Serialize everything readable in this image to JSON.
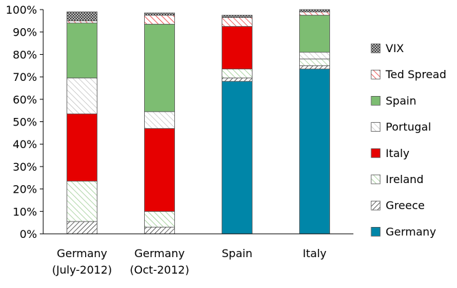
{
  "chart_data": {
    "type": "bar",
    "stacked": true,
    "percent": true,
    "ylim": [
      0,
      100
    ],
    "yticks": [
      "0%",
      "10%",
      "20%",
      "30%",
      "40%",
      "50%",
      "60%",
      "70%",
      "80%",
      "90%",
      "100%"
    ],
    "categories": [
      [
        "Germany",
        "(July-2012)"
      ],
      [
        "Germany",
        "(Oct-2012)"
      ],
      [
        "Spain"
      ],
      [
        "Italy"
      ]
    ],
    "series": [
      {
        "name": "Germany",
        "color": "#0086a8",
        "pattern": "solid",
        "values": [
          0,
          0,
          68,
          73.5
        ]
      },
      {
        "name": "Greece",
        "color": "#ffffff",
        "pattern": "hatch-dense-black",
        "values": [
          5.5,
          3,
          1.5,
          1.5
        ]
      },
      {
        "name": "Ireland",
        "color": "#ffffff",
        "pattern": "hatch-green",
        "values": [
          18,
          7,
          4,
          3
        ]
      },
      {
        "name": "Italy",
        "color": "#e60000",
        "pattern": "solid",
        "values": [
          30,
          37,
          19,
          0
        ]
      },
      {
        "name": "Portugal",
        "color": "#ffffff",
        "pattern": "hatch-gray",
        "values": [
          16,
          7.5,
          0,
          3
        ]
      },
      {
        "name": "Spain",
        "color": "#7dbd72",
        "pattern": "solid",
        "values": [
          24.5,
          39,
          0,
          16.5
        ]
      },
      {
        "name": "Ted Spread",
        "color": "#ffffff",
        "pattern": "hatch-red",
        "values": [
          1,
          4,
          4,
          1.5
        ]
      },
      {
        "name": "VIX",
        "color": "#999999",
        "pattern": "dots-dark",
        "values": [
          4,
          1,
          1,
          1
        ]
      }
    ],
    "legend_position": "right",
    "grid": false
  }
}
